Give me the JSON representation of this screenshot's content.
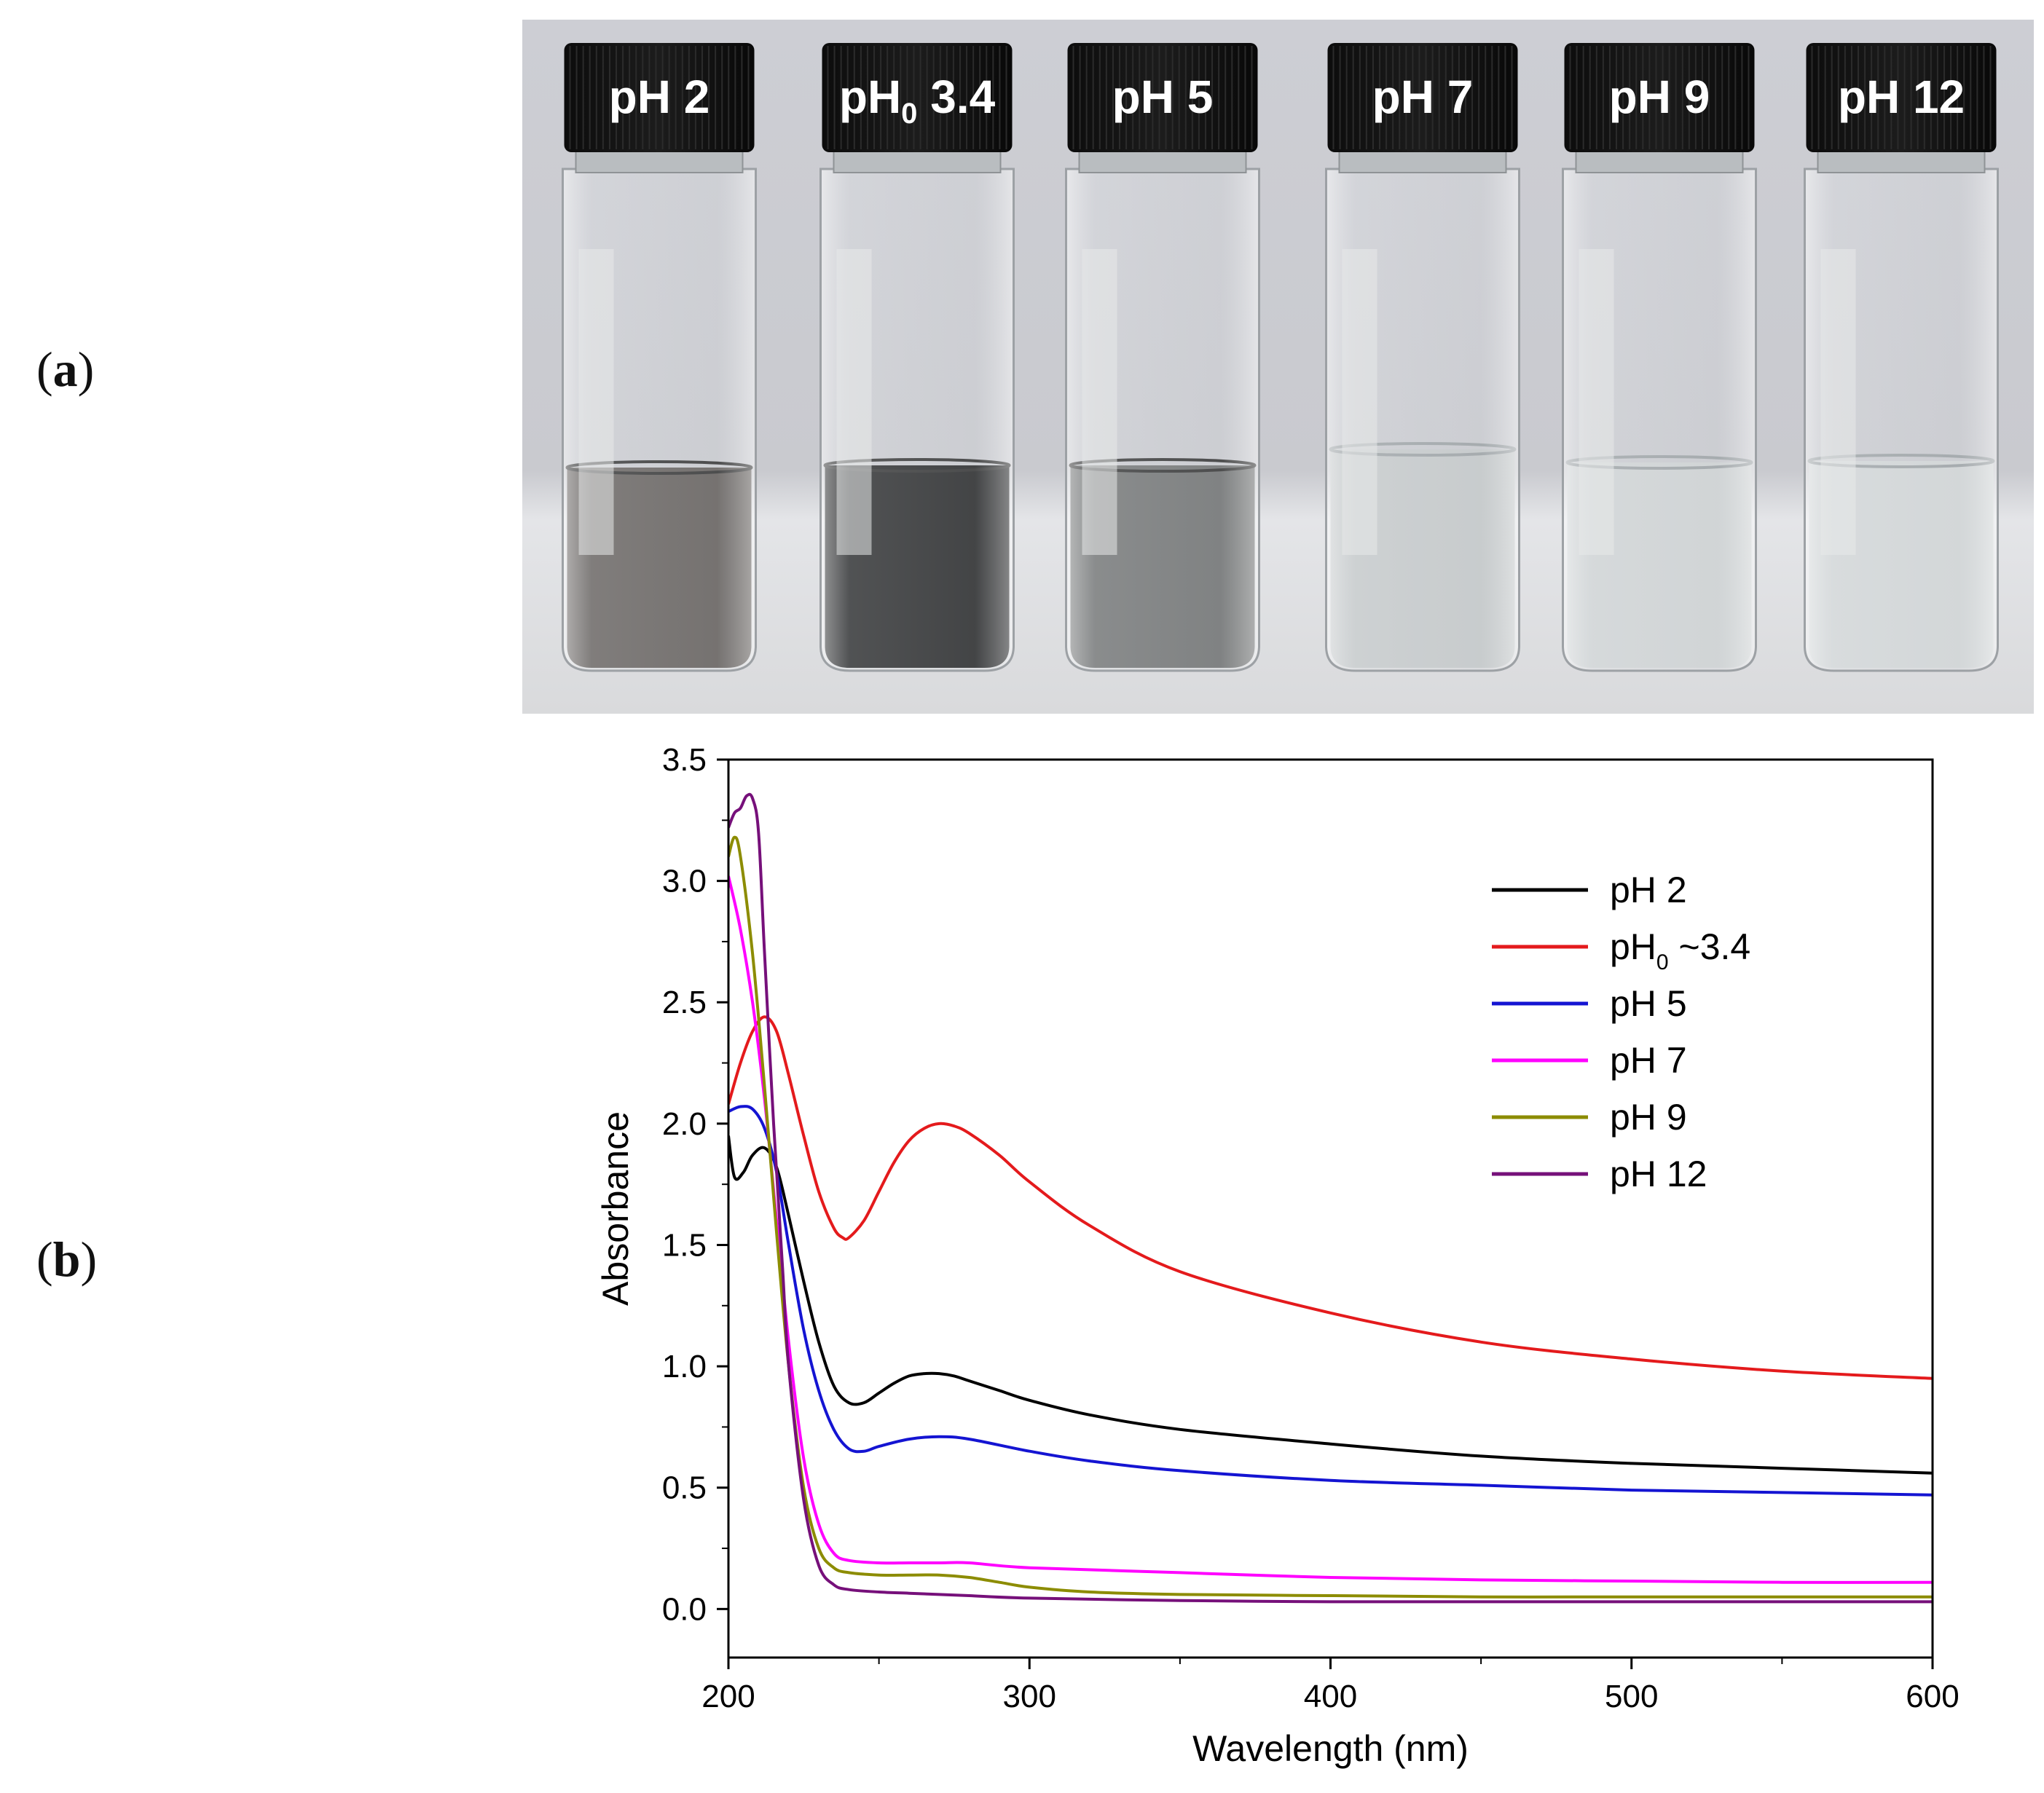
{
  "panels": {
    "a_label": "a",
    "b_label": "b"
  },
  "photo": {
    "vials": [
      {
        "main": "pH",
        "sub": "",
        "value": " 2",
        "liquid": "#5d5855",
        "tone": "dark"
      },
      {
        "main": "pH",
        "sub": "0",
        "value": " 3.4",
        "liquid": "#1e1f20",
        "tone": "darkest"
      },
      {
        "main": "pH",
        "sub": "",
        "value": " 5",
        "liquid": "#6a6c6c",
        "tone": "medium"
      },
      {
        "main": "pH",
        "sub": "",
        "value": " 7",
        "liquid": "#c4c8c9",
        "tone": "clear"
      },
      {
        "main": "pH",
        "sub": "",
        "value": " 9",
        "liquid": "#cfd3d4",
        "tone": "clear"
      },
      {
        "main": "pH",
        "sub": "",
        "value": " 12",
        "liquid": "#d2d6d7",
        "tone": "clear"
      }
    ]
  },
  "chart_data": {
    "type": "line",
    "xlabel": "Wavelength (nm)",
    "ylabel": "Absorbance",
    "xlim": [
      200,
      600
    ],
    "ylim": [
      -0.2,
      3.5
    ],
    "xticks": [
      200,
      300,
      400,
      500,
      600
    ],
    "yticks": [
      0.0,
      0.5,
      1.0,
      1.5,
      2.0,
      2.5,
      3.0,
      3.5
    ],
    "xtick_labels": [
      "200",
      "300",
      "400",
      "500",
      "600"
    ],
    "ytick_labels": [
      "0.0",
      "0.5",
      "1.0",
      "1.5",
      "2.0",
      "2.5",
      "3.0",
      "3.5"
    ],
    "legend_position": "top-right",
    "series": [
      {
        "name": "pH 2",
        "label_main": "pH",
        "label_sub": "",
        "label_rest": " 2",
        "color": "#000000",
        "points": [
          [
            200,
            1.95
          ],
          [
            202,
            1.78
          ],
          [
            205,
            1.8
          ],
          [
            208,
            1.87
          ],
          [
            212,
            1.9
          ],
          [
            216,
            1.82
          ],
          [
            220,
            1.62
          ],
          [
            225,
            1.35
          ],
          [
            230,
            1.1
          ],
          [
            235,
            0.92
          ],
          [
            240,
            0.85
          ],
          [
            245,
            0.85
          ],
          [
            250,
            0.89
          ],
          [
            255,
            0.93
          ],
          [
            260,
            0.96
          ],
          [
            265,
            0.97
          ],
          [
            270,
            0.97
          ],
          [
            275,
            0.96
          ],
          [
            280,
            0.94
          ],
          [
            290,
            0.9
          ],
          [
            300,
            0.86
          ],
          [
            320,
            0.8
          ],
          [
            350,
            0.74
          ],
          [
            400,
            0.68
          ],
          [
            450,
            0.63
          ],
          [
            500,
            0.6
          ],
          [
            550,
            0.58
          ],
          [
            600,
            0.56
          ]
        ]
      },
      {
        "name": "pH0 ~3.4",
        "label_main": "pH",
        "label_sub": "0",
        "label_rest": " ~3.4",
        "color": "#e41a1c",
        "points": [
          [
            200,
            2.08
          ],
          [
            204,
            2.25
          ],
          [
            208,
            2.38
          ],
          [
            212,
            2.44
          ],
          [
            216,
            2.38
          ],
          [
            220,
            2.2
          ],
          [
            225,
            1.95
          ],
          [
            230,
            1.72
          ],
          [
            235,
            1.57
          ],
          [
            238,
            1.53
          ],
          [
            240,
            1.53
          ],
          [
            245,
            1.6
          ],
          [
            250,
            1.72
          ],
          [
            255,
            1.84
          ],
          [
            260,
            1.93
          ],
          [
            265,
            1.98
          ],
          [
            270,
            2.0
          ],
          [
            275,
            1.99
          ],
          [
            280,
            1.96
          ],
          [
            290,
            1.87
          ],
          [
            300,
            1.76
          ],
          [
            320,
            1.58
          ],
          [
            350,
            1.39
          ],
          [
            400,
            1.22
          ],
          [
            450,
            1.1
          ],
          [
            500,
            1.03
          ],
          [
            550,
            0.98
          ],
          [
            600,
            0.95
          ]
        ]
      },
      {
        "name": "pH 5",
        "label_main": "pH",
        "label_sub": "",
        "label_rest": " 5",
        "color": "#1414d2",
        "points": [
          [
            200,
            2.05
          ],
          [
            204,
            2.07
          ],
          [
            208,
            2.06
          ],
          [
            212,
            1.98
          ],
          [
            216,
            1.8
          ],
          [
            220,
            1.5
          ],
          [
            225,
            1.15
          ],
          [
            230,
            0.9
          ],
          [
            235,
            0.74
          ],
          [
            240,
            0.66
          ],
          [
            245,
            0.65
          ],
          [
            250,
            0.67
          ],
          [
            260,
            0.7
          ],
          [
            270,
            0.71
          ],
          [
            280,
            0.7
          ],
          [
            300,
            0.65
          ],
          [
            320,
            0.61
          ],
          [
            350,
            0.57
          ],
          [
            400,
            0.53
          ],
          [
            450,
            0.51
          ],
          [
            500,
            0.49
          ],
          [
            550,
            0.48
          ],
          [
            600,
            0.47
          ]
        ]
      },
      {
        "name": "pH 7",
        "label_main": "pH",
        "label_sub": "",
        "label_rest": " 7",
        "color": "#ff00ff",
        "points": [
          [
            200,
            3.02
          ],
          [
            204,
            2.8
          ],
          [
            208,
            2.5
          ],
          [
            212,
            2.1
          ],
          [
            216,
            1.6
          ],
          [
            220,
            1.1
          ],
          [
            225,
            0.62
          ],
          [
            230,
            0.35
          ],
          [
            235,
            0.23
          ],
          [
            240,
            0.2
          ],
          [
            250,
            0.19
          ],
          [
            260,
            0.19
          ],
          [
            270,
            0.19
          ],
          [
            280,
            0.19
          ],
          [
            300,
            0.17
          ],
          [
            350,
            0.15
          ],
          [
            400,
            0.13
          ],
          [
            450,
            0.12
          ],
          [
            500,
            0.115
          ],
          [
            550,
            0.11
          ],
          [
            600,
            0.11
          ]
        ]
      },
      {
        "name": "pH 9",
        "label_main": "pH",
        "label_sub": "",
        "label_rest": " 9",
        "color": "#8c8c00",
        "points": [
          [
            200,
            3.1
          ],
          [
            202,
            3.18
          ],
          [
            204,
            3.1
          ],
          [
            208,
            2.7
          ],
          [
            212,
            2.15
          ],
          [
            216,
            1.55
          ],
          [
            220,
            1.0
          ],
          [
            225,
            0.5
          ],
          [
            230,
            0.25
          ],
          [
            235,
            0.17
          ],
          [
            240,
            0.15
          ],
          [
            250,
            0.14
          ],
          [
            260,
            0.14
          ],
          [
            270,
            0.14
          ],
          [
            280,
            0.13
          ],
          [
            290,
            0.11
          ],
          [
            300,
            0.09
          ],
          [
            320,
            0.07
          ],
          [
            350,
            0.06
          ],
          [
            400,
            0.055
          ],
          [
            450,
            0.05
          ],
          [
            500,
            0.05
          ],
          [
            550,
            0.05
          ],
          [
            600,
            0.05
          ]
        ]
      },
      {
        "name": "pH 12",
        "label_main": "pH",
        "label_sub": "",
        "label_rest": " 12",
        "color": "#76107a",
        "points": [
          [
            200,
            3.22
          ],
          [
            202,
            3.28
          ],
          [
            204,
            3.3
          ],
          [
            206,
            3.35
          ],
          [
            208,
            3.34
          ],
          [
            210,
            3.2
          ],
          [
            212,
            2.7
          ],
          [
            215,
            2.0
          ],
          [
            218,
            1.4
          ],
          [
            220,
            1.0
          ],
          [
            225,
            0.45
          ],
          [
            230,
            0.18
          ],
          [
            235,
            0.1
          ],
          [
            240,
            0.08
          ],
          [
            250,
            0.07
          ],
          [
            260,
            0.065
          ],
          [
            270,
            0.06
          ],
          [
            280,
            0.055
          ],
          [
            300,
            0.045
          ],
          [
            350,
            0.035
          ],
          [
            400,
            0.03
          ],
          [
            450,
            0.03
          ],
          [
            500,
            0.03
          ],
          [
            550,
            0.03
          ],
          [
            600,
            0.03
          ]
        ]
      }
    ]
  }
}
